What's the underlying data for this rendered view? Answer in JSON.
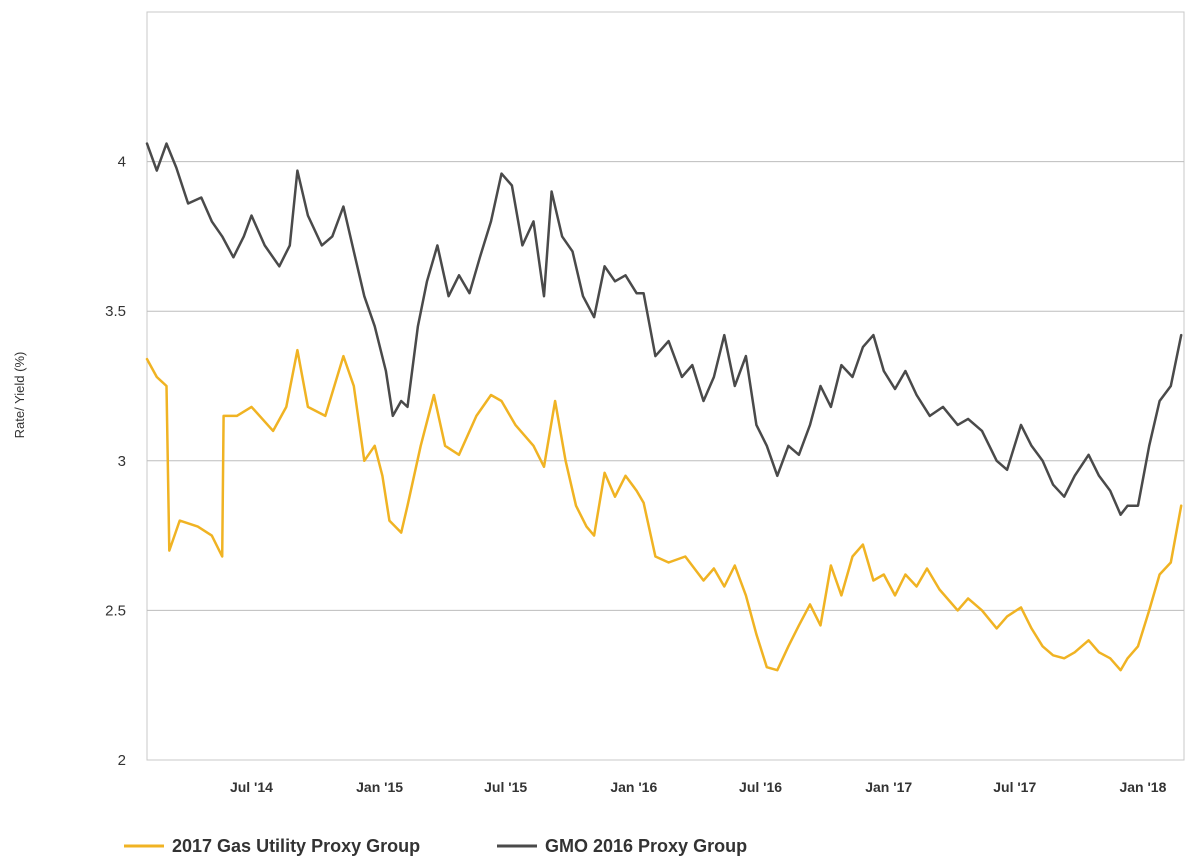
{
  "chart_data": {
    "type": "line",
    "title": "",
    "xlabel": "",
    "ylabel": "Rate/ Yield (%)",
    "ylim": [
      2,
      4.5
    ],
    "xlim": [
      "2014-02",
      "2018-03"
    ],
    "y_ticks": [
      "2",
      "2.5",
      "3",
      "3.5",
      "4"
    ],
    "x_ticks": [
      {
        "label": "Jul '14",
        "date": "2014-07-01"
      },
      {
        "label": "Jan '15",
        "date": "2015-01-01"
      },
      {
        "label": "Jul '15",
        "date": "2015-07-01"
      },
      {
        "label": "Jan '16",
        "date": "2016-01-01"
      },
      {
        "label": "Jul '16",
        "date": "2016-07-01"
      },
      {
        "label": "Jan '17",
        "date": "2017-01-01"
      },
      {
        "label": "Jul '17",
        "date": "2017-07-01"
      },
      {
        "label": "Jan '18",
        "date": "2018-01-01"
      }
    ],
    "grid": "horizontal",
    "legend": "bottom",
    "series": [
      {
        "name": "2017 Gas Utility Proxy Group",
        "color": "#f0b323",
        "points": [
          [
            "2014-02-01",
            3.34
          ],
          [
            "2014-02-15",
            3.28
          ],
          [
            "2014-03-01",
            3.25
          ],
          [
            "2014-03-05",
            2.7
          ],
          [
            "2014-03-20",
            2.8
          ],
          [
            "2014-04-15",
            2.78
          ],
          [
            "2014-05-05",
            2.75
          ],
          [
            "2014-05-20",
            2.68
          ],
          [
            "2014-05-22",
            3.15
          ],
          [
            "2014-06-10",
            3.15
          ],
          [
            "2014-07-01",
            3.18
          ],
          [
            "2014-08-01",
            3.1
          ],
          [
            "2014-08-20",
            3.18
          ],
          [
            "2014-09-05",
            3.37
          ],
          [
            "2014-09-20",
            3.18
          ],
          [
            "2014-10-15",
            3.15
          ],
          [
            "2014-11-10",
            3.35
          ],
          [
            "2014-11-25",
            3.25
          ],
          [
            "2014-12-10",
            3.0
          ],
          [
            "2014-12-25",
            3.05
          ],
          [
            "2015-01-05",
            2.95
          ],
          [
            "2015-01-15",
            2.8
          ],
          [
            "2015-02-01",
            2.76
          ],
          [
            "2015-02-10",
            2.85
          ],
          [
            "2015-03-01",
            3.05
          ],
          [
            "2015-03-20",
            3.22
          ],
          [
            "2015-04-05",
            3.05
          ],
          [
            "2015-04-25",
            3.02
          ],
          [
            "2015-05-20",
            3.15
          ],
          [
            "2015-06-10",
            3.22
          ],
          [
            "2015-06-25",
            3.2
          ],
          [
            "2015-07-15",
            3.12
          ],
          [
            "2015-08-10",
            3.05
          ],
          [
            "2015-08-25",
            2.98
          ],
          [
            "2015-09-10",
            3.2
          ],
          [
            "2015-09-25",
            3.0
          ],
          [
            "2015-10-10",
            2.85
          ],
          [
            "2015-10-25",
            2.78
          ],
          [
            "2015-11-05",
            2.75
          ],
          [
            "2015-11-20",
            2.96
          ],
          [
            "2015-12-05",
            2.88
          ],
          [
            "2015-12-20",
            2.95
          ],
          [
            "2016-01-05",
            2.9
          ],
          [
            "2016-01-15",
            2.86
          ],
          [
            "2016-02-01",
            2.68
          ],
          [
            "2016-02-20",
            2.66
          ],
          [
            "2016-03-15",
            2.68
          ],
          [
            "2016-04-10",
            2.6
          ],
          [
            "2016-04-25",
            2.64
          ],
          [
            "2016-05-10",
            2.58
          ],
          [
            "2016-05-25",
            2.65
          ],
          [
            "2016-06-10",
            2.55
          ],
          [
            "2016-06-25",
            2.42
          ],
          [
            "2016-07-10",
            2.31
          ],
          [
            "2016-07-25",
            2.3
          ],
          [
            "2016-08-10",
            2.38
          ],
          [
            "2016-08-25",
            2.45
          ],
          [
            "2016-09-10",
            2.52
          ],
          [
            "2016-09-25",
            2.45
          ],
          [
            "2016-10-10",
            2.65
          ],
          [
            "2016-10-25",
            2.55
          ],
          [
            "2016-11-10",
            2.68
          ],
          [
            "2016-11-25",
            2.72
          ],
          [
            "2016-12-10",
            2.6
          ],
          [
            "2016-12-25",
            2.62
          ],
          [
            "2017-01-10",
            2.55
          ],
          [
            "2017-01-25",
            2.62
          ],
          [
            "2017-02-10",
            2.58
          ],
          [
            "2017-02-25",
            2.64
          ],
          [
            "2017-03-15",
            2.57
          ],
          [
            "2017-04-10",
            2.5
          ],
          [
            "2017-04-25",
            2.54
          ],
          [
            "2017-05-15",
            2.5
          ],
          [
            "2017-06-05",
            2.44
          ],
          [
            "2017-06-20",
            2.48
          ],
          [
            "2017-07-10",
            2.51
          ],
          [
            "2017-07-25",
            2.44
          ],
          [
            "2017-08-10",
            2.38
          ],
          [
            "2017-08-25",
            2.35
          ],
          [
            "2017-09-10",
            2.34
          ],
          [
            "2017-09-25",
            2.36
          ],
          [
            "2017-10-15",
            2.4
          ],
          [
            "2017-10-30",
            2.36
          ],
          [
            "2017-11-15",
            2.34
          ],
          [
            "2017-11-30",
            2.3
          ],
          [
            "2017-12-10",
            2.34
          ],
          [
            "2017-12-25",
            2.38
          ],
          [
            "2018-01-10",
            2.5
          ],
          [
            "2018-01-25",
            2.62
          ],
          [
            "2018-02-10",
            2.66
          ],
          [
            "2018-02-25",
            2.85
          ]
        ]
      },
      {
        "name": "GMO 2016 Proxy Group",
        "color": "#4a4a4a",
        "points": [
          [
            "2014-02-01",
            4.06
          ],
          [
            "2014-02-15",
            3.97
          ],
          [
            "2014-03-01",
            4.06
          ],
          [
            "2014-03-15",
            3.98
          ],
          [
            "2014-04-01",
            3.86
          ],
          [
            "2014-04-20",
            3.88
          ],
          [
            "2014-05-05",
            3.8
          ],
          [
            "2014-05-20",
            3.75
          ],
          [
            "2014-06-05",
            3.68
          ],
          [
            "2014-06-20",
            3.75
          ],
          [
            "2014-07-01",
            3.82
          ],
          [
            "2014-07-20",
            3.72
          ],
          [
            "2014-08-10",
            3.65
          ],
          [
            "2014-08-25",
            3.72
          ],
          [
            "2014-09-05",
            3.97
          ],
          [
            "2014-09-20",
            3.82
          ],
          [
            "2014-10-10",
            3.72
          ],
          [
            "2014-10-25",
            3.75
          ],
          [
            "2014-11-10",
            3.85
          ],
          [
            "2014-11-25",
            3.7
          ],
          [
            "2014-12-10",
            3.55
          ],
          [
            "2014-12-25",
            3.45
          ],
          [
            "2015-01-10",
            3.3
          ],
          [
            "2015-01-20",
            3.15
          ],
          [
            "2015-02-01",
            3.2
          ],
          [
            "2015-02-10",
            3.18
          ],
          [
            "2015-02-25",
            3.45
          ],
          [
            "2015-03-10",
            3.6
          ],
          [
            "2015-03-25",
            3.72
          ],
          [
            "2015-04-10",
            3.55
          ],
          [
            "2015-04-25",
            3.62
          ],
          [
            "2015-05-10",
            3.56
          ],
          [
            "2015-05-25",
            3.68
          ],
          [
            "2015-06-10",
            3.8
          ],
          [
            "2015-06-25",
            3.96
          ],
          [
            "2015-07-10",
            3.92
          ],
          [
            "2015-07-25",
            3.72
          ],
          [
            "2015-08-10",
            3.8
          ],
          [
            "2015-08-25",
            3.55
          ],
          [
            "2015-09-05",
            3.9
          ],
          [
            "2015-09-20",
            3.75
          ],
          [
            "2015-10-05",
            3.7
          ],
          [
            "2015-10-20",
            3.55
          ],
          [
            "2015-11-05",
            3.48
          ],
          [
            "2015-11-20",
            3.65
          ],
          [
            "2015-12-05",
            3.6
          ],
          [
            "2015-12-20",
            3.62
          ],
          [
            "2016-01-05",
            3.56
          ],
          [
            "2016-01-15",
            3.56
          ],
          [
            "2016-02-01",
            3.35
          ],
          [
            "2016-02-20",
            3.4
          ],
          [
            "2016-03-10",
            3.28
          ],
          [
            "2016-03-25",
            3.32
          ],
          [
            "2016-04-10",
            3.2
          ],
          [
            "2016-04-25",
            3.28
          ],
          [
            "2016-05-10",
            3.42
          ],
          [
            "2016-05-25",
            3.25
          ],
          [
            "2016-06-10",
            3.35
          ],
          [
            "2016-06-25",
            3.12
          ],
          [
            "2016-07-10",
            3.05
          ],
          [
            "2016-07-25",
            2.95
          ],
          [
            "2016-08-10",
            3.05
          ],
          [
            "2016-08-25",
            3.02
          ],
          [
            "2016-09-10",
            3.12
          ],
          [
            "2016-09-25",
            3.25
          ],
          [
            "2016-10-10",
            3.18
          ],
          [
            "2016-10-25",
            3.32
          ],
          [
            "2016-11-10",
            3.28
          ],
          [
            "2016-11-25",
            3.38
          ],
          [
            "2016-12-10",
            3.42
          ],
          [
            "2016-12-25",
            3.3
          ],
          [
            "2017-01-10",
            3.24
          ],
          [
            "2017-01-25",
            3.3
          ],
          [
            "2017-02-10",
            3.22
          ],
          [
            "2017-03-01",
            3.15
          ],
          [
            "2017-03-20",
            3.18
          ],
          [
            "2017-04-10",
            3.12
          ],
          [
            "2017-04-25",
            3.14
          ],
          [
            "2017-05-15",
            3.1
          ],
          [
            "2017-06-05",
            3.0
          ],
          [
            "2017-06-20",
            2.97
          ],
          [
            "2017-07-10",
            3.12
          ],
          [
            "2017-07-25",
            3.05
          ],
          [
            "2017-08-10",
            3.0
          ],
          [
            "2017-08-25",
            2.92
          ],
          [
            "2017-09-10",
            2.88
          ],
          [
            "2017-09-25",
            2.95
          ],
          [
            "2017-10-15",
            3.02
          ],
          [
            "2017-10-30",
            2.95
          ],
          [
            "2017-11-15",
            2.9
          ],
          [
            "2017-11-30",
            2.82
          ],
          [
            "2017-12-10",
            2.85
          ],
          [
            "2017-12-25",
            2.85
          ],
          [
            "2018-01-10",
            3.05
          ],
          [
            "2018-01-25",
            3.2
          ],
          [
            "2018-02-10",
            3.25
          ],
          [
            "2018-02-25",
            3.42
          ]
        ]
      }
    ]
  }
}
